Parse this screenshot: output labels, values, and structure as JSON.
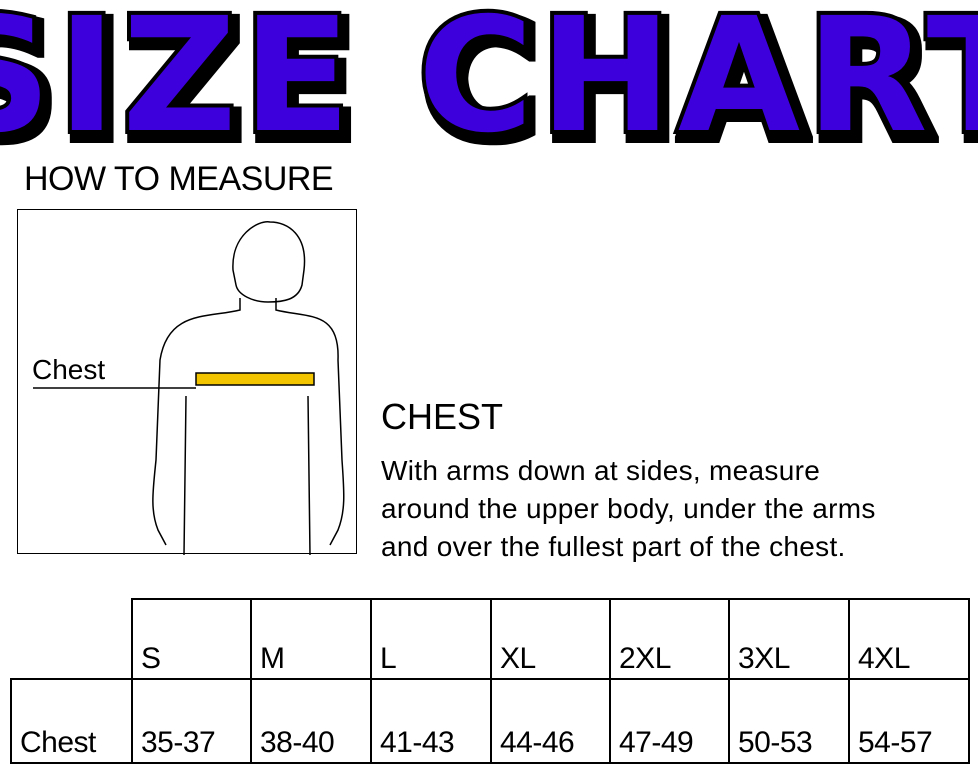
{
  "title": "SIZE CHART",
  "colors": {
    "title_fill": "#3d00dd",
    "title_outline": "#000000",
    "tape": "#f2c500"
  },
  "how_to_measure": {
    "heading": "HOW TO MEASURE",
    "figure_label": "Chest",
    "figure_icon": "human-torso-outline"
  },
  "chest_section": {
    "heading": "CHEST",
    "lines": [
      "With arms down at sides, measure",
      "around the upper body, under the arms",
      "and over the fullest part of the chest."
    ]
  },
  "table": {
    "sizes": [
      "S",
      "M",
      "L",
      "XL",
      "2XL",
      "3XL",
      "4XL"
    ],
    "row_label": "Chest",
    "values": [
      "35-37",
      "38-40",
      "41-43",
      "44-46",
      "47-49",
      "50-53",
      "54-57"
    ]
  }
}
